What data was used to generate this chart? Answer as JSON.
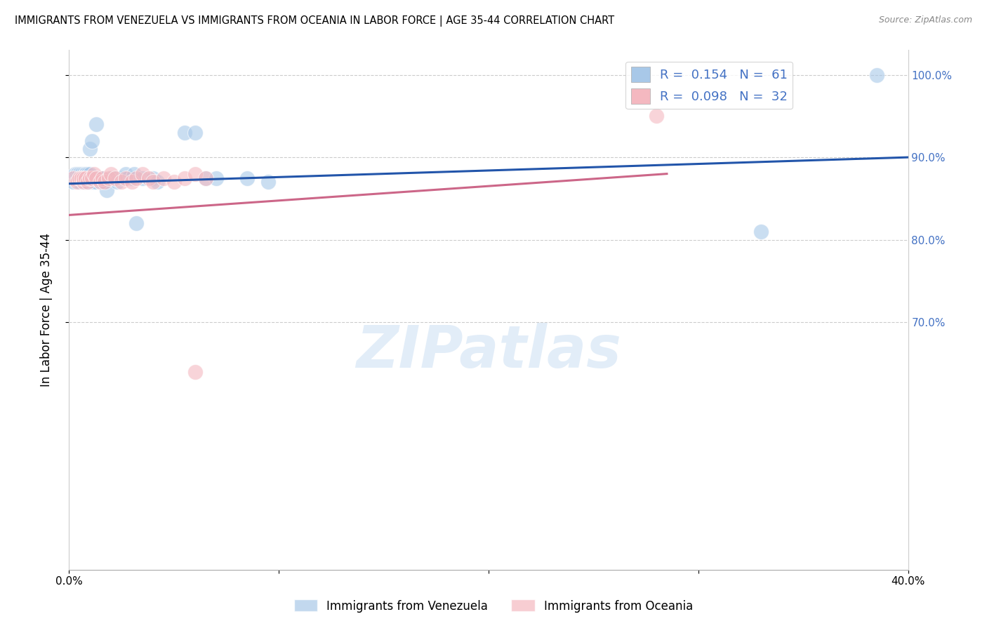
{
  "title": "IMMIGRANTS FROM VENEZUELA VS IMMIGRANTS FROM OCEANIA IN LABOR FORCE | AGE 35-44 CORRELATION CHART",
  "source": "Source: ZipAtlas.com",
  "ylabel": "In Labor Force | Age 35-44",
  "xlim": [
    0.0,
    0.4
  ],
  "ylim": [
    0.4,
    1.03
  ],
  "xticks": [
    0.0,
    0.1,
    0.2,
    0.3,
    0.4
  ],
  "xtick_labels": [
    "0.0%",
    "",
    "",
    "",
    "40.0%"
  ],
  "yticks": [
    0.7,
    0.8,
    0.9,
    1.0
  ],
  "ytick_labels": [
    "70.0%",
    "80.0%",
    "90.0%",
    "100.0%"
  ],
  "ytick_color": "#4472c4",
  "blue_R": 0.154,
  "blue_N": 61,
  "pink_R": 0.098,
  "pink_N": 32,
  "blue_color": "#a8c8e8",
  "pink_color": "#f4b8c0",
  "blue_line_color": "#2255aa",
  "pink_line_color": "#cc6688",
  "watermark": "ZIPatlas",
  "blue_scatter_x": [
    0.001,
    0.002,
    0.003,
    0.003,
    0.004,
    0.004,
    0.005,
    0.005,
    0.005,
    0.006,
    0.006,
    0.006,
    0.007,
    0.007,
    0.007,
    0.007,
    0.008,
    0.008,
    0.008,
    0.008,
    0.008,
    0.009,
    0.009,
    0.009,
    0.01,
    0.01,
    0.01,
    0.011,
    0.011,
    0.012,
    0.012,
    0.013,
    0.013,
    0.014,
    0.015,
    0.015,
    0.016,
    0.016,
    0.017,
    0.018,
    0.02,
    0.022,
    0.023,
    0.025,
    0.026,
    0.027,
    0.028,
    0.03,
    0.031,
    0.032,
    0.035,
    0.04,
    0.042,
    0.055,
    0.06,
    0.065,
    0.07,
    0.085,
    0.095,
    0.33,
    0.385
  ],
  "blue_scatter_y": [
    0.875,
    0.87,
    0.875,
    0.88,
    0.875,
    0.88,
    0.87,
    0.875,
    0.88,
    0.875,
    0.88,
    0.875,
    0.87,
    0.875,
    0.88,
    0.875,
    0.87,
    0.875,
    0.88,
    0.875,
    0.88,
    0.87,
    0.875,
    0.88,
    0.875,
    0.88,
    0.91,
    0.87,
    0.92,
    0.875,
    0.87,
    0.94,
    0.87,
    0.875,
    0.875,
    0.87,
    0.87,
    0.875,
    0.87,
    0.86,
    0.875,
    0.875,
    0.87,
    0.875,
    0.875,
    0.88,
    0.875,
    0.875,
    0.88,
    0.82,
    0.875,
    0.875,
    0.87,
    0.93,
    0.93,
    0.875,
    0.875,
    0.875,
    0.87,
    0.81,
    1.0
  ],
  "pink_scatter_x": [
    0.002,
    0.004,
    0.005,
    0.006,
    0.007,
    0.007,
    0.008,
    0.009,
    0.01,
    0.011,
    0.012,
    0.013,
    0.015,
    0.016,
    0.017,
    0.019,
    0.02,
    0.022,
    0.025,
    0.027,
    0.03,
    0.032,
    0.035,
    0.038,
    0.04,
    0.045,
    0.05,
    0.055,
    0.06,
    0.065,
    0.28,
    0.06
  ],
  "pink_scatter_y": [
    0.875,
    0.87,
    0.875,
    0.875,
    0.87,
    0.875,
    0.875,
    0.87,
    0.875,
    0.875,
    0.88,
    0.875,
    0.87,
    0.875,
    0.87,
    0.875,
    0.88,
    0.875,
    0.87,
    0.875,
    0.87,
    0.875,
    0.88,
    0.875,
    0.87,
    0.875,
    0.87,
    0.875,
    0.88,
    0.875,
    0.95,
    0.64
  ],
  "blue_trend_x": [
    0.0,
    0.4
  ],
  "blue_trend_y": [
    0.868,
    0.9
  ],
  "pink_trend_x": [
    0.0,
    0.285
  ],
  "pink_trend_y": [
    0.83,
    0.88
  ]
}
